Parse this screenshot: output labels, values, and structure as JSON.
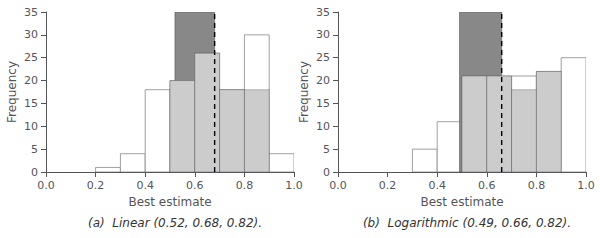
{
  "chart_data": [
    {
      "type": "histogram",
      "annotations": [
        "(a)  Linear (0.52, 0.68, 0.82)."
      ],
      "xlabel": "Best estimate",
      "ylabel": "Frequency",
      "xlim": [
        0,
        1
      ],
      "xticks": [
        {
          "value": 0,
          "label": "0.0"
        },
        0.2,
        0.4,
        0.6,
        0.8,
        {
          "value": 1.0,
          "label": "1.0"
        }
      ],
      "ylim": [
        0,
        35
      ],
      "yticks": [
        0,
        5,
        10,
        15,
        20,
        25,
        30,
        35
      ],
      "grid": false,
      "series": [
        {
          "type": "bar",
          "color": "#ffffff",
          "bins": [
            0.2,
            0.3,
            0.4,
            0.5,
            0.6,
            0.7,
            0.8,
            0.9,
            1.0
          ],
          "values": [
            1,
            4,
            18,
            20,
            26,
            18,
            30,
            4
          ]
        },
        {
          "type": "span",
          "color": "#888888",
          "x": [
            0.52,
            0.68
          ]
        },
        {
          "type": "bar",
          "color": "#cccccc",
          "bins": [
            0.5,
            0.6,
            0.7,
            0.8,
            0.9
          ],
          "values": [
            20,
            26,
            18,
            18
          ]
        },
        {
          "type": "vline",
          "color": "#000000",
          "line_style": "dashed",
          "x": 0.68
        }
      ]
    },
    {
      "type": "histogram",
      "annotations": [
        "(b)  Logarithmic (0.49, 0.66, 0.82)."
      ],
      "xlabel": "Best estimate",
      "ylabel": "Frequency",
      "xlim": [
        0,
        1
      ],
      "xticks": [
        {
          "value": 0,
          "label": "0.0"
        },
        0.2,
        0.4,
        0.6,
        0.8,
        {
          "value": 1.0,
          "label": "1.0"
        }
      ],
      "ylim": [
        0,
        35
      ],
      "yticks": [
        0,
        5,
        10,
        15,
        20,
        25,
        30,
        35
      ],
      "grid": false,
      "series": [
        {
          "type": "bar",
          "color": "#ffffff",
          "bins": [
            0.2,
            0.3,
            0.4,
            0.5,
            0.6,
            0.7,
            0.8,
            0.9,
            1.0
          ],
          "values": [
            0,
            5,
            11,
            15,
            21,
            21,
            22,
            25
          ]
        },
        {
          "type": "span",
          "color": "#888888",
          "x": [
            0.49,
            0.66
          ]
        },
        {
          "type": "bar",
          "color": "#cccccc",
          "bins": [
            0.5,
            0.6,
            0.7,
            0.8,
            0.9
          ],
          "values": [
            21,
            21,
            18,
            22
          ]
        },
        {
          "type": "vline",
          "color": "#000000",
          "line_style": "dashed",
          "x": 0.66
        }
      ]
    }
  ]
}
